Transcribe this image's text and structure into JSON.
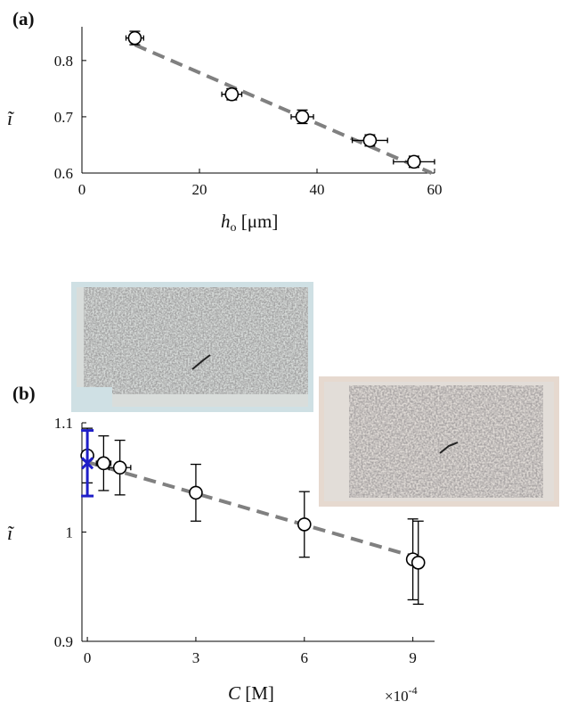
{
  "chart_data": [
    {
      "type": "scatter",
      "panel_label": "(a)",
      "xlabel": "h",
      "xlabel_sub": "o",
      "xlabel_unit": " [μm]",
      "ylabel": "ĩ",
      "xlim": [
        0,
        60
      ],
      "ylim": [
        0.6,
        0.86
      ],
      "xticks": [
        0,
        20,
        40,
        60
      ],
      "yticks": [
        0.6,
        0.7,
        0.8
      ],
      "ytick_labels": [
        "0.6",
        "0.7",
        "0.8"
      ],
      "grid": false,
      "series": [
        {
          "points": [
            {
              "x": 9,
              "y": 0.84,
              "yerr": 0.012,
              "xerr": 1.5
            },
            {
              "x": 25.5,
              "y": 0.74,
              "yerr": 0.01,
              "xerr": 1.7
            },
            {
              "x": 37.5,
              "y": 0.7,
              "yerr": 0.012,
              "xerr": 1.9
            },
            {
              "x": 49,
              "y": 0.658,
              "yerr": 0.01,
              "xerr": 3.0
            },
            {
              "x": 56.5,
              "y": 0.62,
              "yerr": 0.01,
              "xerr": 3.5
            }
          ],
          "color": "#000000"
        }
      ],
      "fit_line": {
        "x": [
          9,
          59.5
        ],
        "y": [
          0.828,
          0.6
        ],
        "color": "#808080"
      }
    },
    {
      "type": "scatter",
      "panel_label": "(b)",
      "xlabel": "C",
      "xlabel_unit": " [M]",
      "ylabel": "ĩ",
      "xlim": [
        -0.15,
        9.6
      ],
      "ylim": [
        0.9,
        1.1
      ],
      "xticks": [
        0,
        3,
        6,
        9
      ],
      "xtick_labels": [
        "0",
        "3",
        "6",
        "9"
      ],
      "x_multiplier": "×10",
      "x_multiplier_exp": "-4",
      "yticks": [
        0.9,
        1.0,
        1.1
      ],
      "ytick_labels": [
        "0.9",
        "1",
        "1.1"
      ],
      "grid": false,
      "series": [
        {
          "points": [
            {
              "x": 0,
              "y": 1.07,
              "yerr": 0.025,
              "xerr": 0.1
            },
            {
              "x": 0.45,
              "y": 1.063,
              "yerr": 0.025,
              "xerr": 0.2
            },
            {
              "x": 0.9,
              "y": 1.059,
              "yerr": 0.025,
              "xerr": 0.3
            },
            {
              "x": 3,
              "y": 1.036,
              "yerr": 0.026,
              "xerr": 0.1
            },
            {
              "x": 6,
              "y": 1.007,
              "yerr": 0.03,
              "xerr": 0.1
            },
            {
              "x": 9,
              "y": 0.975,
              "yerr": 0.037,
              "xerr": 0.15
            },
            {
              "x": 9.15,
              "y": 0.972,
              "yerr": 0.038,
              "xerr": 0.15
            }
          ],
          "color": "#000000"
        },
        {
          "marker": "x",
          "points": [
            {
              "x": 0,
              "y": 1.063,
              "yerr": 0.03
            }
          ],
          "color": "#1f1fc8"
        }
      ],
      "fit_line": {
        "x": [
          0,
          9.2
        ],
        "y": [
          1.064,
          0.976
        ],
        "color": "#808080"
      }
    }
  ]
}
